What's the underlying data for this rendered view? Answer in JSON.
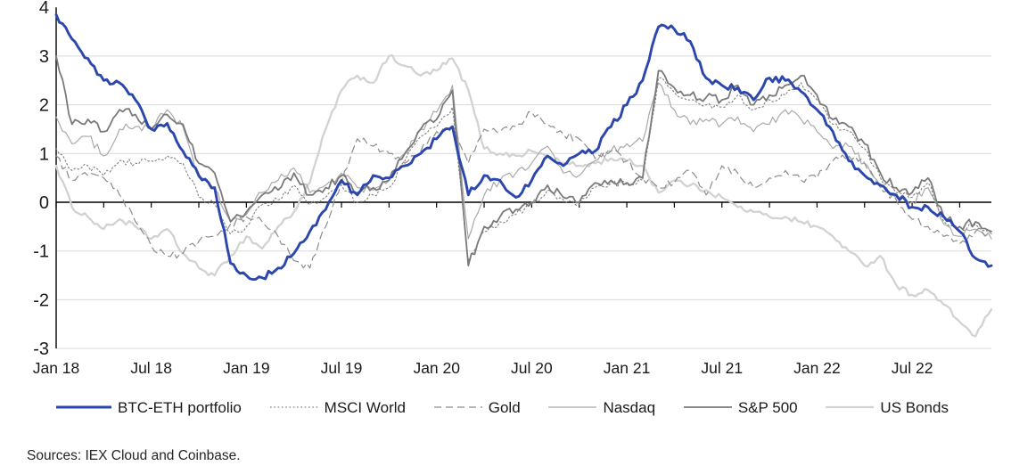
{
  "page": {
    "background": "#ffffff"
  },
  "chart": {
    "source_note": "Sources: IEX Cloud and Coinbase.",
    "y_tick_labels": [
      "4",
      "3",
      "2",
      "1",
      "0",
      "-1",
      "-2",
      "-3"
    ],
    "x_tick_labels": [
      "Jan 18",
      "Jul 18",
      "Jan 19",
      "Jul 19",
      "Jan 20",
      "Jul 20",
      "Jan 21",
      "Jul 21",
      "Jan 22",
      "Jul 22"
    ],
    "colors": {
      "grid": "#d9d9d9",
      "axis": "#000000",
      "text": "#1a1a1a"
    }
  },
  "chart_data": {
    "type": "line",
    "title": "",
    "xlabel": "",
    "ylabel": "",
    "ylim": [
      -3,
      4
    ],
    "grid": "horizontal",
    "legend_position": "bottom",
    "x": [
      "2018-01",
      "2018-02",
      "2018-03",
      "2018-04",
      "2018-05",
      "2018-06",
      "2018-07",
      "2018-08",
      "2018-09",
      "2018-10",
      "2018-11",
      "2018-12",
      "2019-01",
      "2019-02",
      "2019-03",
      "2019-04",
      "2019-05",
      "2019-06",
      "2019-07",
      "2019-08",
      "2019-09",
      "2019-10",
      "2019-11",
      "2019-12",
      "2020-01",
      "2020-02",
      "2020-03",
      "2020-04",
      "2020-05",
      "2020-06",
      "2020-07",
      "2020-08",
      "2020-09",
      "2020-10",
      "2020-11",
      "2020-12",
      "2021-01",
      "2021-02",
      "2021-03",
      "2021-04",
      "2021-05",
      "2021-06",
      "2021-07",
      "2021-08",
      "2021-09",
      "2021-10",
      "2021-11",
      "2021-12",
      "2022-01",
      "2022-02",
      "2022-03",
      "2022-04",
      "2022-05",
      "2022-06",
      "2022-07",
      "2022-08",
      "2022-09",
      "2022-10",
      "2022-11",
      "2022-12"
    ],
    "x_axis_tick_labels": [
      "Jan 18",
      "Jul 18",
      "Jan 19",
      "Jul 19",
      "Jan 20",
      "Jul 20",
      "Jan 21",
      "Jul 21",
      "Jan 22",
      "Jul 22"
    ],
    "series": [
      {
        "name": "US Bonds",
        "color": "#d2d2d2",
        "style": "solid",
        "width": 2.3,
        "noise": 0.06,
        "values": [
          0.75,
          -0.1,
          -0.3,
          -0.55,
          -0.35,
          -0.5,
          -0.75,
          -0.55,
          -1.05,
          -1.35,
          -1.5,
          -1.1,
          -0.7,
          -0.95,
          -0.5,
          -0.2,
          0.4,
          1.5,
          2.3,
          2.6,
          2.45,
          3.0,
          2.8,
          2.6,
          2.7,
          2.95,
          2.3,
          1.1,
          1.0,
          0.95,
          1.05,
          0.95,
          0.8,
          0.75,
          0.8,
          0.9,
          0.85,
          0.75,
          0.2,
          0.45,
          0.35,
          0.25,
          0.1,
          -0.1,
          -0.2,
          -0.3,
          -0.3,
          -0.4,
          -0.5,
          -0.7,
          -1.0,
          -1.3,
          -1.1,
          -1.7,
          -1.9,
          -1.8,
          -2.1,
          -2.45,
          -2.75,
          -2.2
        ]
      },
      {
        "name": "Nasdaq",
        "color": "#a9a9a9",
        "style": "solid",
        "width": 1.2,
        "noise": 0.09,
        "values": [
          1.75,
          1.2,
          1.35,
          0.95,
          1.5,
          1.55,
          1.5,
          1.9,
          1.55,
          0.5,
          0.25,
          -0.4,
          -0.25,
          0.2,
          0.45,
          0.7,
          0.2,
          0.35,
          0.6,
          0.3,
          0.25,
          0.45,
          1.0,
          1.5,
          1.85,
          2.4,
          -0.75,
          0.15,
          0.45,
          0.6,
          0.8,
          1.15,
          0.6,
          0.55,
          0.85,
          1.05,
          1.2,
          1.25,
          2.45,
          1.9,
          1.6,
          1.7,
          1.6,
          1.75,
          1.45,
          1.6,
          1.9,
          1.7,
          1.45,
          1.1,
          1.15,
          0.8,
          0.3,
          0.1,
          0.0,
          0.3,
          -0.45,
          -0.7,
          -0.55,
          -0.75
        ]
      },
      {
        "name": "Gold",
        "color": "#8c8c8c",
        "style": "dashed",
        "width": 1.2,
        "noise": 0.08,
        "values": [
          0.95,
          0.45,
          0.55,
          0.5,
          0.15,
          -0.4,
          -0.9,
          -1.1,
          -1.05,
          -0.8,
          -0.7,
          -0.45,
          -0.3,
          -0.4,
          -0.7,
          -1.2,
          -1.35,
          -0.5,
          0.4,
          1.3,
          1.15,
          1.0,
          0.8,
          1.05,
          1.45,
          1.55,
          0.8,
          1.5,
          1.45,
          1.55,
          1.85,
          1.6,
          1.4,
          1.3,
          0.9,
          1.05,
          0.85,
          0.5,
          0.3,
          0.4,
          0.65,
          0.15,
          0.75,
          0.6,
          0.3,
          0.5,
          0.65,
          0.45,
          0.5,
          0.85,
          0.95,
          0.8,
          0.3,
          0.05,
          -0.35,
          -0.5,
          -0.7,
          -0.85,
          -0.6,
          -0.65
        ]
      },
      {
        "name": "MSCI World",
        "color": "#7f7f7f",
        "style": "dotted",
        "width": 1.1,
        "noise": 0.07,
        "values": [
          1.1,
          0.65,
          0.75,
          0.55,
          0.85,
          0.8,
          0.85,
          0.95,
          0.8,
          0.1,
          -0.05,
          -0.65,
          -0.5,
          -0.05,
          0.05,
          0.35,
          -0.05,
          0.1,
          0.35,
          0.0,
          0.15,
          0.3,
          0.85,
          1.35,
          1.55,
          1.95,
          -1.2,
          -0.6,
          -0.4,
          -0.25,
          -0.05,
          0.25,
          0.05,
          -0.05,
          0.3,
          0.4,
          0.35,
          0.45,
          2.55,
          2.25,
          2.1,
          2.0,
          1.95,
          2.2,
          1.9,
          2.1,
          2.2,
          2.45,
          2.1,
          1.6,
          1.45,
          1.1,
          0.5,
          0.2,
          0.1,
          0.4,
          -0.4,
          -0.6,
          -0.45,
          -0.65
        ]
      },
      {
        "name": "S&P 500",
        "color": "#7a7a7a",
        "style": "solid",
        "width": 1.8,
        "noise": 0.09,
        "values": [
          3.0,
          1.6,
          1.7,
          1.45,
          1.9,
          1.8,
          1.5,
          1.8,
          1.6,
          0.8,
          0.6,
          -0.4,
          -0.2,
          0.15,
          0.25,
          0.6,
          0.15,
          0.3,
          0.55,
          0.2,
          0.3,
          0.45,
          1.0,
          1.5,
          1.7,
          2.3,
          -1.3,
          -0.5,
          -0.3,
          -0.15,
          0.0,
          0.35,
          0.1,
          0.0,
          0.4,
          0.45,
          0.4,
          0.5,
          2.7,
          2.35,
          2.2,
          2.15,
          2.1,
          2.4,
          2.0,
          2.2,
          2.4,
          2.6,
          2.2,
          1.7,
          1.55,
          1.2,
          0.6,
          0.3,
          0.2,
          0.5,
          -0.3,
          -0.5,
          -0.4,
          -0.6
        ]
      },
      {
        "name": "BTC-ETH portfolio",
        "color": "#2b46ad",
        "style": "solid",
        "width": 2.9,
        "noise": 0.07,
        "values": [
          3.85,
          3.35,
          2.95,
          2.5,
          2.45,
          2.1,
          1.5,
          1.62,
          1.05,
          0.55,
          0.3,
          -1.25,
          -1.5,
          -1.55,
          -1.35,
          -1.05,
          -0.6,
          -0.15,
          0.45,
          0.15,
          0.55,
          0.5,
          0.75,
          1.0,
          1.3,
          1.55,
          0.15,
          0.55,
          0.45,
          0.1,
          0.45,
          0.95,
          0.75,
          1.0,
          1.05,
          1.55,
          2.0,
          2.5,
          3.6,
          3.55,
          3.3,
          2.55,
          2.4,
          2.35,
          2.1,
          2.55,
          2.5,
          2.27,
          1.9,
          1.45,
          0.85,
          0.55,
          0.35,
          0.15,
          -0.1,
          -0.1,
          -0.3,
          -0.6,
          -1.15,
          -1.3
        ]
      }
    ],
    "legend_order": [
      "BTC-ETH portfolio",
      "MSCI World",
      "Gold",
      "Nasdaq",
      "S&P 500",
      "US Bonds"
    ]
  }
}
